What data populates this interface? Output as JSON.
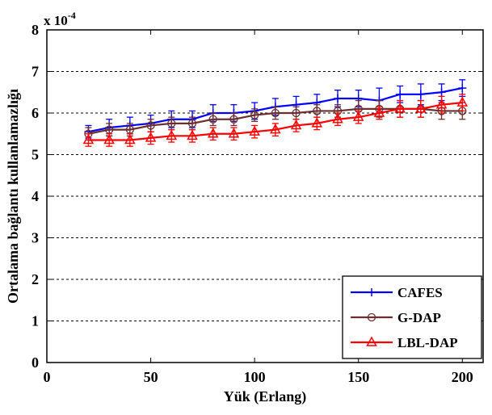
{
  "chart_data": {
    "type": "line",
    "title": "",
    "xlabel": "Yük (Erlang)",
    "ylabel": "Ortalama bağlantı kullanlamazlığı",
    "y_multiplier_label": "x 10",
    "y_multiplier_exponent": "-4",
    "xlim": [
      0,
      210
    ],
    "ylim": [
      0,
      8
    ],
    "xticks": [
      0,
      50,
      100,
      150,
      200
    ],
    "yticks": [
      0,
      1,
      2,
      3,
      4,
      5,
      6,
      7,
      8
    ],
    "grid": "horizontal dashed",
    "legend_position": "bottom-right",
    "x": [
      20,
      30,
      40,
      50,
      60,
      70,
      80,
      90,
      100,
      110,
      120,
      130,
      140,
      150,
      160,
      170,
      180,
      190,
      200
    ],
    "series": [
      {
        "name": "CAFES",
        "color": "#0000ff",
        "marker": "plus",
        "values": [
          5.55,
          5.65,
          5.7,
          5.75,
          5.85,
          5.85,
          6.0,
          6.0,
          6.05,
          6.15,
          6.2,
          6.25,
          6.35,
          6.35,
          6.3,
          6.45,
          6.45,
          6.5,
          6.6
        ],
        "error": [
          0.15,
          0.2,
          0.2,
          0.2,
          0.2,
          0.2,
          0.2,
          0.2,
          0.2,
          0.2,
          0.2,
          0.2,
          0.2,
          0.2,
          0.3,
          0.2,
          0.25,
          0.2,
          0.2
        ]
      },
      {
        "name": "G-DAP",
        "color": "#6b2f2f",
        "marker": "circle",
        "values": [
          5.5,
          5.6,
          5.6,
          5.7,
          5.75,
          5.75,
          5.85,
          5.85,
          5.95,
          6.0,
          6.0,
          6.05,
          6.05,
          6.1,
          6.1,
          6.1,
          6.1,
          6.05,
          6.05
        ],
        "error": [
          0.15,
          0.15,
          0.15,
          0.15,
          0.15,
          0.15,
          0.15,
          0.15,
          0.15,
          0.15,
          0.15,
          0.15,
          0.15,
          0.2,
          0.2,
          0.2,
          0.2,
          0.2,
          0.2
        ]
      },
      {
        "name": "LBL-DAP",
        "color": "#ff0000",
        "marker": "triangle",
        "values": [
          5.35,
          5.35,
          5.35,
          5.4,
          5.45,
          5.45,
          5.5,
          5.5,
          5.55,
          5.6,
          5.7,
          5.75,
          5.85,
          5.9,
          6.0,
          6.1,
          6.1,
          6.2,
          6.25
        ],
        "error": [
          0.15,
          0.15,
          0.15,
          0.15,
          0.15,
          0.15,
          0.15,
          0.15,
          0.15,
          0.15,
          0.15,
          0.15,
          0.15,
          0.15,
          0.15,
          0.2,
          0.2,
          0.2,
          0.2
        ]
      }
    ]
  }
}
